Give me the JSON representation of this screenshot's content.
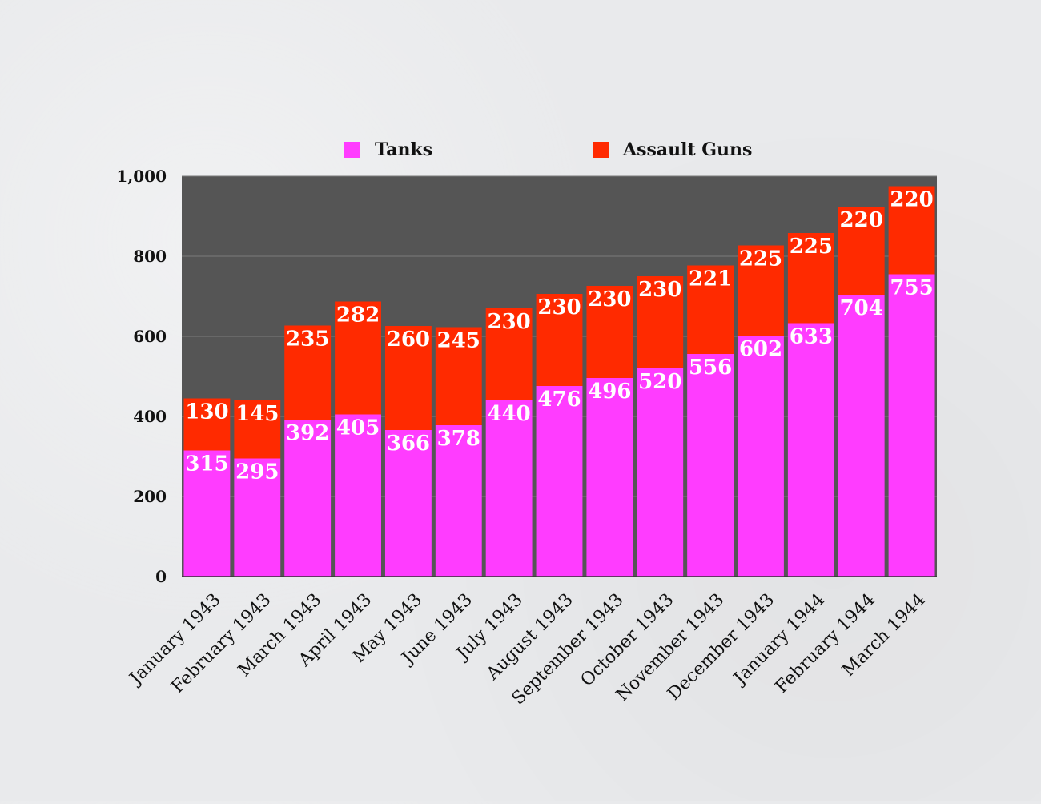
{
  "chart_data": {
    "type": "bar",
    "stacked": true,
    "title": "",
    "xlabel": "",
    "ylabel": "",
    "ylim": [
      0,
      1000
    ],
    "yticks": [
      "0",
      "200",
      "400",
      "600",
      "800",
      "1,000"
    ],
    "grid": true,
    "legend_position": "top",
    "categories": [
      "January 1943",
      "February 1943",
      "March 1943",
      "April 1943",
      "May 1943",
      "June 1943",
      "July 1943",
      "August 1943",
      "September 1943",
      "October 1943",
      "November 1943",
      "December 1943",
      "January 1944",
      "February 1944",
      "March 1944"
    ],
    "series": [
      {
        "name": "Tanks",
        "color": "#ff3cff",
        "values": [
          315,
          295,
          392,
          405,
          366,
          378,
          440,
          476,
          496,
          520,
          556,
          602,
          633,
          704,
          755
        ]
      },
      {
        "name": "Assault Guns",
        "color": "#ff2a00",
        "values": [
          130,
          145,
          235,
          282,
          260,
          245,
          230,
          230,
          230,
          230,
          221,
          225,
          225,
          220,
          220
        ]
      }
    ],
    "plot_background": "#555555"
  }
}
